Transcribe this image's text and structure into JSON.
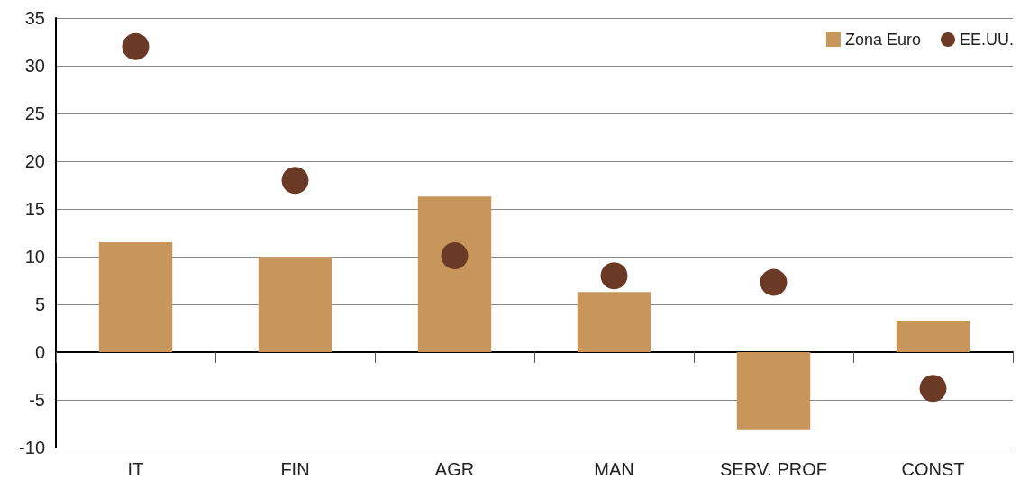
{
  "chart_data": {
    "type": "bar",
    "categories": [
      "IT",
      "FIN",
      "AGR",
      "MAN",
      "SERV. PROF",
      "CONST"
    ],
    "series": [
      {
        "name": "Zona Euro",
        "color": "#c8955a",
        "values": [
          11.5,
          10,
          16.3,
          6.3,
          -8.1,
          3.3
        ]
      },
      {
        "name": "EE.UU.",
        "type": "scatter",
        "color": "#6b3a26",
        "values": [
          32,
          18,
          10.1,
          8,
          7.3,
          -3.8
        ]
      }
    ],
    "ylim": [
      -10,
      35
    ],
    "yticks": [
      -10,
      -5,
      0,
      5,
      10,
      15,
      20,
      25,
      30,
      35
    ],
    "grid": "y",
    "legend": "top right",
    "marker": "circle"
  }
}
